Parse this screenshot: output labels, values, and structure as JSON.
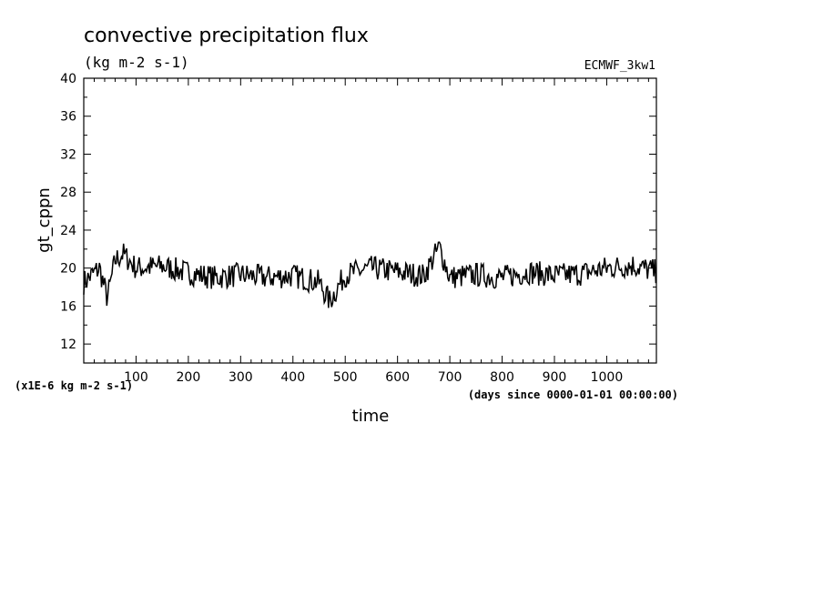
{
  "chart_data": {
    "type": "line",
    "title": "convective precipitation flux",
    "units": "(kg m-2 s-1)",
    "dataset": "ECMWF_3kw1",
    "xlabel": "time",
    "ylabel": "gt_cppn",
    "x_units": "(days since 0000-01-01 00:00:00)",
    "y_scale_note": "(x1E-6 kg m-2 s-1)",
    "xlim": [
      0,
      1095
    ],
    "ylim": [
      10,
      40
    ],
    "x_ticks": [
      100,
      200,
      300,
      400,
      500,
      600,
      700,
      800,
      900,
      1000
    ],
    "y_ticks": [
      12,
      16,
      20,
      24,
      28,
      32,
      36,
      40
    ],
    "grid": false,
    "series": [
      {
        "x": [
          0,
          30,
          45,
          60,
          75,
          100,
          150,
          200,
          250,
          300,
          350,
          400,
          450,
          470,
          500,
          550,
          600,
          650,
          680,
          700,
          750,
          800,
          850,
          900,
          950,
          1000,
          1050,
          1095
        ],
        "values": [
          18.5,
          20.0,
          16.8,
          20.8,
          21.5,
          20.0,
          20.2,
          19.5,
          19.0,
          19.3,
          19.0,
          19.2,
          18.5,
          16.5,
          19.3,
          20.0,
          19.6,
          19.2,
          22.2,
          19.0,
          19.3,
          19.0,
          19.6,
          19.2,
          19.4,
          20.0,
          20.3,
          19.6
        ]
      }
    ]
  }
}
